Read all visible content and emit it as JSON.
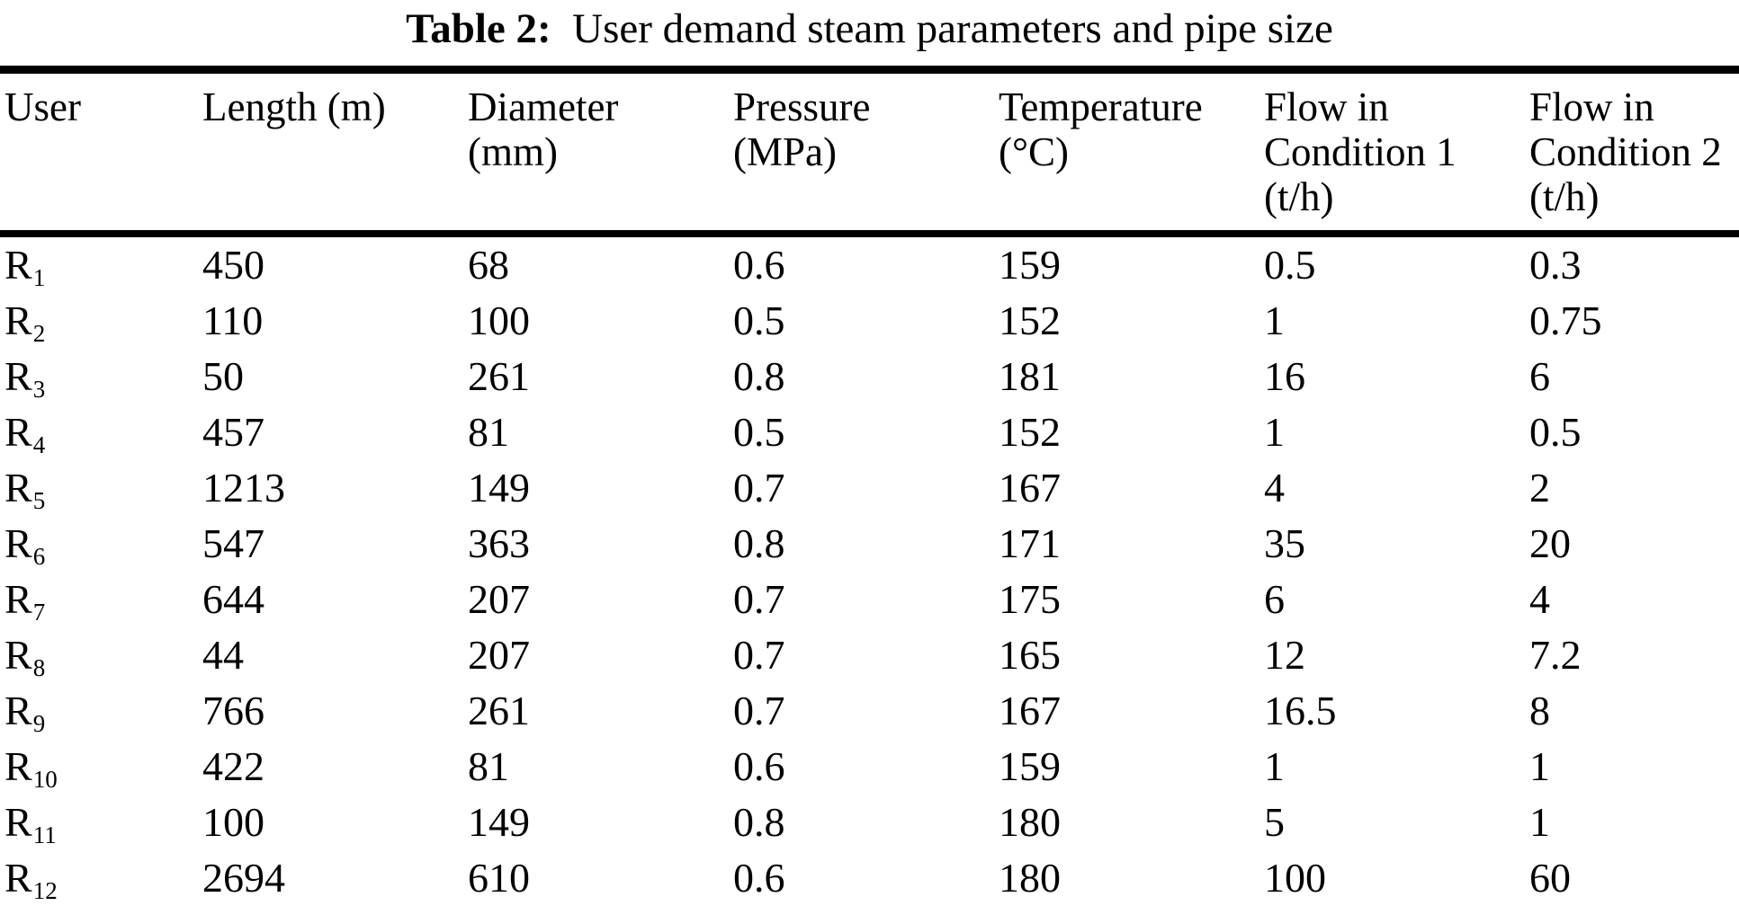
{
  "caption": {
    "label": "Table 2:",
    "text": "User demand steam parameters and pipe size"
  },
  "table": {
    "header": [
      {
        "line1": "User"
      },
      {
        "line1": "Length (m)"
      },
      {
        "line1": "Diameter",
        "line2": "(mm)"
      },
      {
        "line1": "Pressure",
        "line2": "(MPa)"
      },
      {
        "line1": "Temperature",
        "line2": "(°C)"
      },
      {
        "line1": "Flow in",
        "line2": "Condition 1",
        "line3": "(t/h)"
      },
      {
        "line1": "Flow in",
        "line2": "Condition 2",
        "line3": "(t/h)"
      }
    ],
    "rows": [
      {
        "user_base": "R",
        "user_sub": "1",
        "length": "450",
        "diameter": "68",
        "pressure": "0.6",
        "temperature": "159",
        "flow1": "0.5",
        "flow2": "0.3"
      },
      {
        "user_base": "R",
        "user_sub": "2",
        "length": "110",
        "diameter": "100",
        "pressure": "0.5",
        "temperature": "152",
        "flow1": "1",
        "flow2": "0.75"
      },
      {
        "user_base": "R",
        "user_sub": "3",
        "length": "50",
        "diameter": "261",
        "pressure": "0.8",
        "temperature": "181",
        "flow1": "16",
        "flow2": "6"
      },
      {
        "user_base": "R",
        "user_sub": "4",
        "length": "457",
        "diameter": "81",
        "pressure": "0.5",
        "temperature": "152",
        "flow1": "1",
        "flow2": "0.5"
      },
      {
        "user_base": "R",
        "user_sub": "5",
        "length": "1213",
        "diameter": "149",
        "pressure": "0.7",
        "temperature": "167",
        "flow1": "4",
        "flow2": "2"
      },
      {
        "user_base": "R",
        "user_sub": "6",
        "length": "547",
        "diameter": "363",
        "pressure": "0.8",
        "temperature": "171",
        "flow1": "35",
        "flow2": "20"
      },
      {
        "user_base": "R",
        "user_sub": "7",
        "length": "644",
        "diameter": "207",
        "pressure": "0.7",
        "temperature": "175",
        "flow1": "6",
        "flow2": "4"
      },
      {
        "user_base": "R",
        "user_sub": "8",
        "length": "44",
        "diameter": "207",
        "pressure": "0.7",
        "temperature": "165",
        "flow1": "12",
        "flow2": "7.2"
      },
      {
        "user_base": "R",
        "user_sub": "9",
        "length": "766",
        "diameter": "261",
        "pressure": "0.7",
        "temperature": "167",
        "flow1": "16.5",
        "flow2": "8"
      },
      {
        "user_base": "R",
        "user_sub": "10",
        "length": "422",
        "diameter": "81",
        "pressure": "0.6",
        "temperature": "159",
        "flow1": "1",
        "flow2": "1"
      },
      {
        "user_base": "R",
        "user_sub": "11",
        "length": "100",
        "diameter": "149",
        "pressure": "0.8",
        "temperature": "180",
        "flow1": "5",
        "flow2": "1"
      },
      {
        "user_base": "R",
        "user_sub": "12",
        "length": "2694",
        "diameter": "610",
        "pressure": "0.6",
        "temperature": "180",
        "flow1": "100",
        "flow2": "60"
      }
    ]
  },
  "chart_data": {
    "type": "table",
    "title": "Table 2: User demand steam parameters and pipe size",
    "columns": [
      "User",
      "Length (m)",
      "Diameter (mm)",
      "Pressure (MPa)",
      "Temperature (°C)",
      "Flow in Condition 1 (t/h)",
      "Flow in Condition 2 (t/h)"
    ],
    "rows": [
      [
        "R1",
        450,
        68,
        0.6,
        159,
        0.5,
        0.3
      ],
      [
        "R2",
        110,
        100,
        0.5,
        152,
        1,
        0.75
      ],
      [
        "R3",
        50,
        261,
        0.8,
        181,
        16,
        6
      ],
      [
        "R4",
        457,
        81,
        0.5,
        152,
        1,
        0.5
      ],
      [
        "R5",
        1213,
        149,
        0.7,
        167,
        4,
        2
      ],
      [
        "R6",
        547,
        363,
        0.8,
        171,
        35,
        20
      ],
      [
        "R7",
        644,
        207,
        0.7,
        175,
        6,
        4
      ],
      [
        "R8",
        44,
        207,
        0.7,
        165,
        12,
        7.2
      ],
      [
        "R9",
        766,
        261,
        0.7,
        167,
        16.5,
        8
      ],
      [
        "R10",
        422,
        81,
        0.6,
        159,
        1,
        1
      ],
      [
        "R11",
        100,
        149,
        0.8,
        180,
        5,
        1
      ],
      [
        "R12",
        2694,
        610,
        0.6,
        180,
        100,
        60
      ]
    ]
  }
}
